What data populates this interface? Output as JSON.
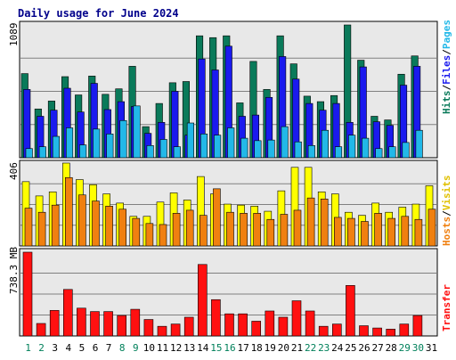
{
  "title": "Daily usage for June 2024",
  "colors": {
    "hits": "#0a7a5a",
    "files": "#1a1aee",
    "pages": "#22b8e8",
    "visits": "#ffff00",
    "hosts": "#f08010",
    "transfer": "#ff1010",
    "weekend_label": "#00805a",
    "weekday_label": "#000000",
    "panel_bg": "#e8e8e8",
    "grid": "#808080"
  },
  "chart_data": [
    {
      "type": "bar",
      "title": "Daily usage for June 2024",
      "ylabel": "Hits/Files/Pages",
      "ymax_label": "1089",
      "ylim": [
        0,
        1089
      ],
      "categories": [
        "1",
        "2",
        "3",
        "4",
        "5",
        "6",
        "7",
        "8",
        "9",
        "10",
        "11",
        "12",
        "13",
        "14",
        "15",
        "16",
        "17",
        "18",
        "19",
        "20",
        "21",
        "22",
        "23",
        "24",
        "25",
        "26",
        "27",
        "28",
        "29",
        "30",
        "31"
      ],
      "series": [
        {
          "name": "Hits",
          "values": [
            690,
            400,
            465,
            665,
            515,
            670,
            520,
            565,
            750,
            255,
            445,
            615,
            625,
            1000,
            985,
            1000,
            450,
            790,
            560,
            1000,
            770,
            505,
            460,
            510,
            1089,
            800,
            340,
            310,
            685,
            835,
            0
          ]
        },
        {
          "name": "Files",
          "values": [
            560,
            340,
            390,
            570,
            375,
            610,
            395,
            460,
            420,
            200,
            290,
            545,
            185,
            810,
            720,
            915,
            340,
            350,
            495,
            830,
            645,
            445,
            390,
            445,
            290,
            745,
            295,
            265,
            595,
            750,
            0
          ]
        },
        {
          "name": "Pages",
          "values": [
            75,
            90,
            175,
            245,
            105,
            235,
            195,
            305,
            425,
            100,
            150,
            90,
            285,
            195,
            185,
            245,
            160,
            140,
            145,
            255,
            130,
            100,
            225,
            90,
            185,
            160,
            75,
            90,
            125,
            225,
            0
          ]
        }
      ]
    },
    {
      "type": "bar",
      "ylabel": "Hosts/Visits",
      "ymax_label": "406",
      "ylim": [
        0,
        406
      ],
      "categories": [
        "1",
        "2",
        "3",
        "4",
        "5",
        "6",
        "7",
        "8",
        "9",
        "10",
        "11",
        "12",
        "13",
        "14",
        "15",
        "16",
        "17",
        "18",
        "19",
        "20",
        "21",
        "22",
        "23",
        "24",
        "25",
        "26",
        "27",
        "28",
        "29",
        "30",
        "31"
      ],
      "series": [
        {
          "name": "Visits",
          "values": [
            315,
            245,
            265,
            406,
            325,
            300,
            255,
            210,
            145,
            145,
            215,
            260,
            225,
            340,
            255,
            205,
            200,
            195,
            170,
            270,
            385,
            385,
            265,
            255,
            165,
            150,
            210,
            165,
            190,
            205,
            295
          ]
        },
        {
          "name": "Hosts",
          "values": [
            185,
            165,
            200,
            335,
            250,
            220,
            195,
            180,
            135,
            110,
            105,
            160,
            175,
            150,
            280,
            165,
            160,
            160,
            130,
            155,
            175,
            235,
            230,
            140,
            135,
            120,
            160,
            135,
            145,
            130,
            180
          ]
        }
      ]
    },
    {
      "type": "bar",
      "ylabel": "Transfer",
      "ymax_label": "738.3 MB",
      "ylim": [
        0,
        738.3
      ],
      "categories": [
        "1",
        "2",
        "3",
        "4",
        "5",
        "6",
        "7",
        "8",
        "9",
        "10",
        "11",
        "12",
        "13",
        "14",
        "15",
        "16",
        "17",
        "18",
        "19",
        "20",
        "21",
        "22",
        "23",
        "24",
        "25",
        "26",
        "27",
        "28",
        "29",
        "30",
        "31"
      ],
      "series": [
        {
          "name": "Transfer",
          "values": [
            738.3,
            110,
            225,
            410,
            245,
            215,
            215,
            180,
            235,
            145,
            85,
            105,
            165,
            630,
            320,
            195,
            195,
            130,
            220,
            165,
            310,
            220,
            85,
            105,
            445,
            90,
            70,
            60,
            105,
            180,
            0
          ]
        }
      ]
    }
  ],
  "day_labels": [
    {
      "text": "1",
      "weekend": true
    },
    {
      "text": "2",
      "weekend": true
    },
    {
      "text": "3",
      "weekend": false
    },
    {
      "text": "4",
      "weekend": false
    },
    {
      "text": "5",
      "weekend": false
    },
    {
      "text": "6",
      "weekend": false
    },
    {
      "text": "7",
      "weekend": false
    },
    {
      "text": "8",
      "weekend": true
    },
    {
      "text": "9",
      "weekend": true
    },
    {
      "text": "10",
      "weekend": false
    },
    {
      "text": "11",
      "weekend": false
    },
    {
      "text": "12",
      "weekend": false
    },
    {
      "text": "13",
      "weekend": false
    },
    {
      "text": "14",
      "weekend": false
    },
    {
      "text": "15",
      "weekend": true
    },
    {
      "text": "16",
      "weekend": true
    },
    {
      "text": "17",
      "weekend": false
    },
    {
      "text": "18",
      "weekend": false
    },
    {
      "text": "19",
      "weekend": false
    },
    {
      "text": "20",
      "weekend": false
    },
    {
      "text": "21",
      "weekend": false
    },
    {
      "text": "22",
      "weekend": true
    },
    {
      "text": "23",
      "weekend": true
    },
    {
      "text": "24",
      "weekend": false
    },
    {
      "text": "25",
      "weekend": false
    },
    {
      "text": "26",
      "weekend": false
    },
    {
      "text": "27",
      "weekend": false
    },
    {
      "text": "28",
      "weekend": false
    },
    {
      "text": "29",
      "weekend": true
    },
    {
      "text": "30",
      "weekend": true
    },
    {
      "text": "31",
      "weekend": false
    }
  ]
}
